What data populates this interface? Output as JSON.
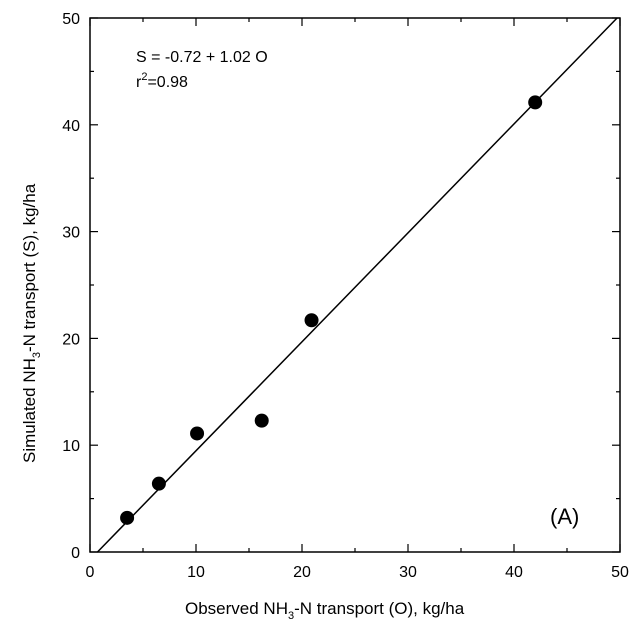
{
  "chart_data": {
    "type": "scatter",
    "x_label": {
      "pre": "Observed NH",
      "sub": "3",
      "post": "-N transport (O), kg/ha"
    },
    "y_label": {
      "pre": "Simulated NH",
      "sub": "3",
      "post": "-N transport (S), kg/ha"
    },
    "xlim": [
      0,
      50
    ],
    "ylim": [
      0,
      50
    ],
    "x_ticks": [
      "0",
      "10",
      "20",
      "30",
      "40",
      "50"
    ],
    "y_ticks": [
      "0",
      "10",
      "20",
      "30",
      "40",
      "50"
    ],
    "points": [
      {
        "x": 3.5,
        "y": 3.2
      },
      {
        "x": 6.5,
        "y": 6.4
      },
      {
        "x": 10.1,
        "y": 11.1
      },
      {
        "x": 16.2,
        "y": 12.3
      },
      {
        "x": 20.9,
        "y": 21.7
      },
      {
        "x": 42.0,
        "y": 42.1
      }
    ],
    "fit_line": {
      "intercept": -0.72,
      "slope": 1.02
    },
    "annotation": {
      "equation": "S = -0.72 + 1.02 O",
      "r2_pre": "r",
      "r2_sup": "2",
      "r2_post": "=0.98"
    },
    "panel_label": "(A)",
    "grid": false
  }
}
